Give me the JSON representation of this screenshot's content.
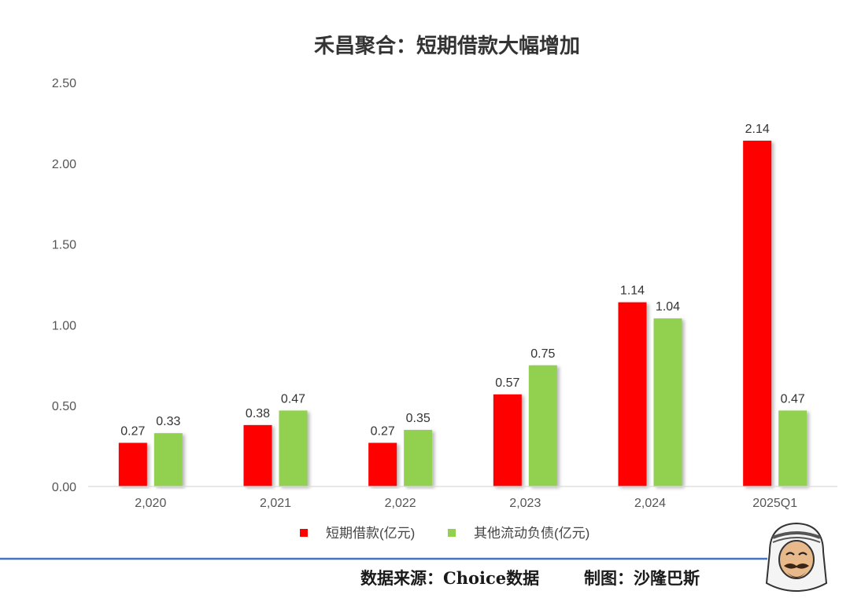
{
  "chart_data": {
    "type": "bar",
    "title": "禾昌聚合：短期借款大幅增加",
    "categories": [
      "2,020",
      "2,021",
      "2,022",
      "2,023",
      "2,024",
      "2025Q1"
    ],
    "series": [
      {
        "name": "短期借款(亿元)",
        "color": "#ff0000",
        "values": [
          0.27,
          0.38,
          0.27,
          0.57,
          1.14,
          2.14
        ],
        "labels": [
          "0.27",
          "0.38",
          "0.27",
          "0.57",
          "1.14",
          "2.14"
        ]
      },
      {
        "name": "其他流动负债(亿元)",
        "color": "#92d050",
        "values": [
          0.33,
          0.47,
          0.35,
          0.75,
          1.04,
          0.47
        ],
        "labels": [
          "0.33",
          "0.47",
          "0.35",
          "0.75",
          "1.04",
          "0.47"
        ]
      }
    ],
    "ylim": [
      0,
      2.5
    ],
    "yticks": [
      "0.00",
      "0.50",
      "1.00",
      "1.50",
      "2.00",
      "2.50"
    ],
    "ytick_values": [
      0,
      0.5,
      1.0,
      1.5,
      2.0,
      2.5
    ],
    "grid": false,
    "legend_position": "bottom"
  },
  "footer": {
    "source": "数据来源：Choice数据",
    "credit": "制图：沙隆巴斯",
    "rule_color": "#4472c4"
  },
  "mascot": {
    "icon": "mascot-logo-icon"
  }
}
